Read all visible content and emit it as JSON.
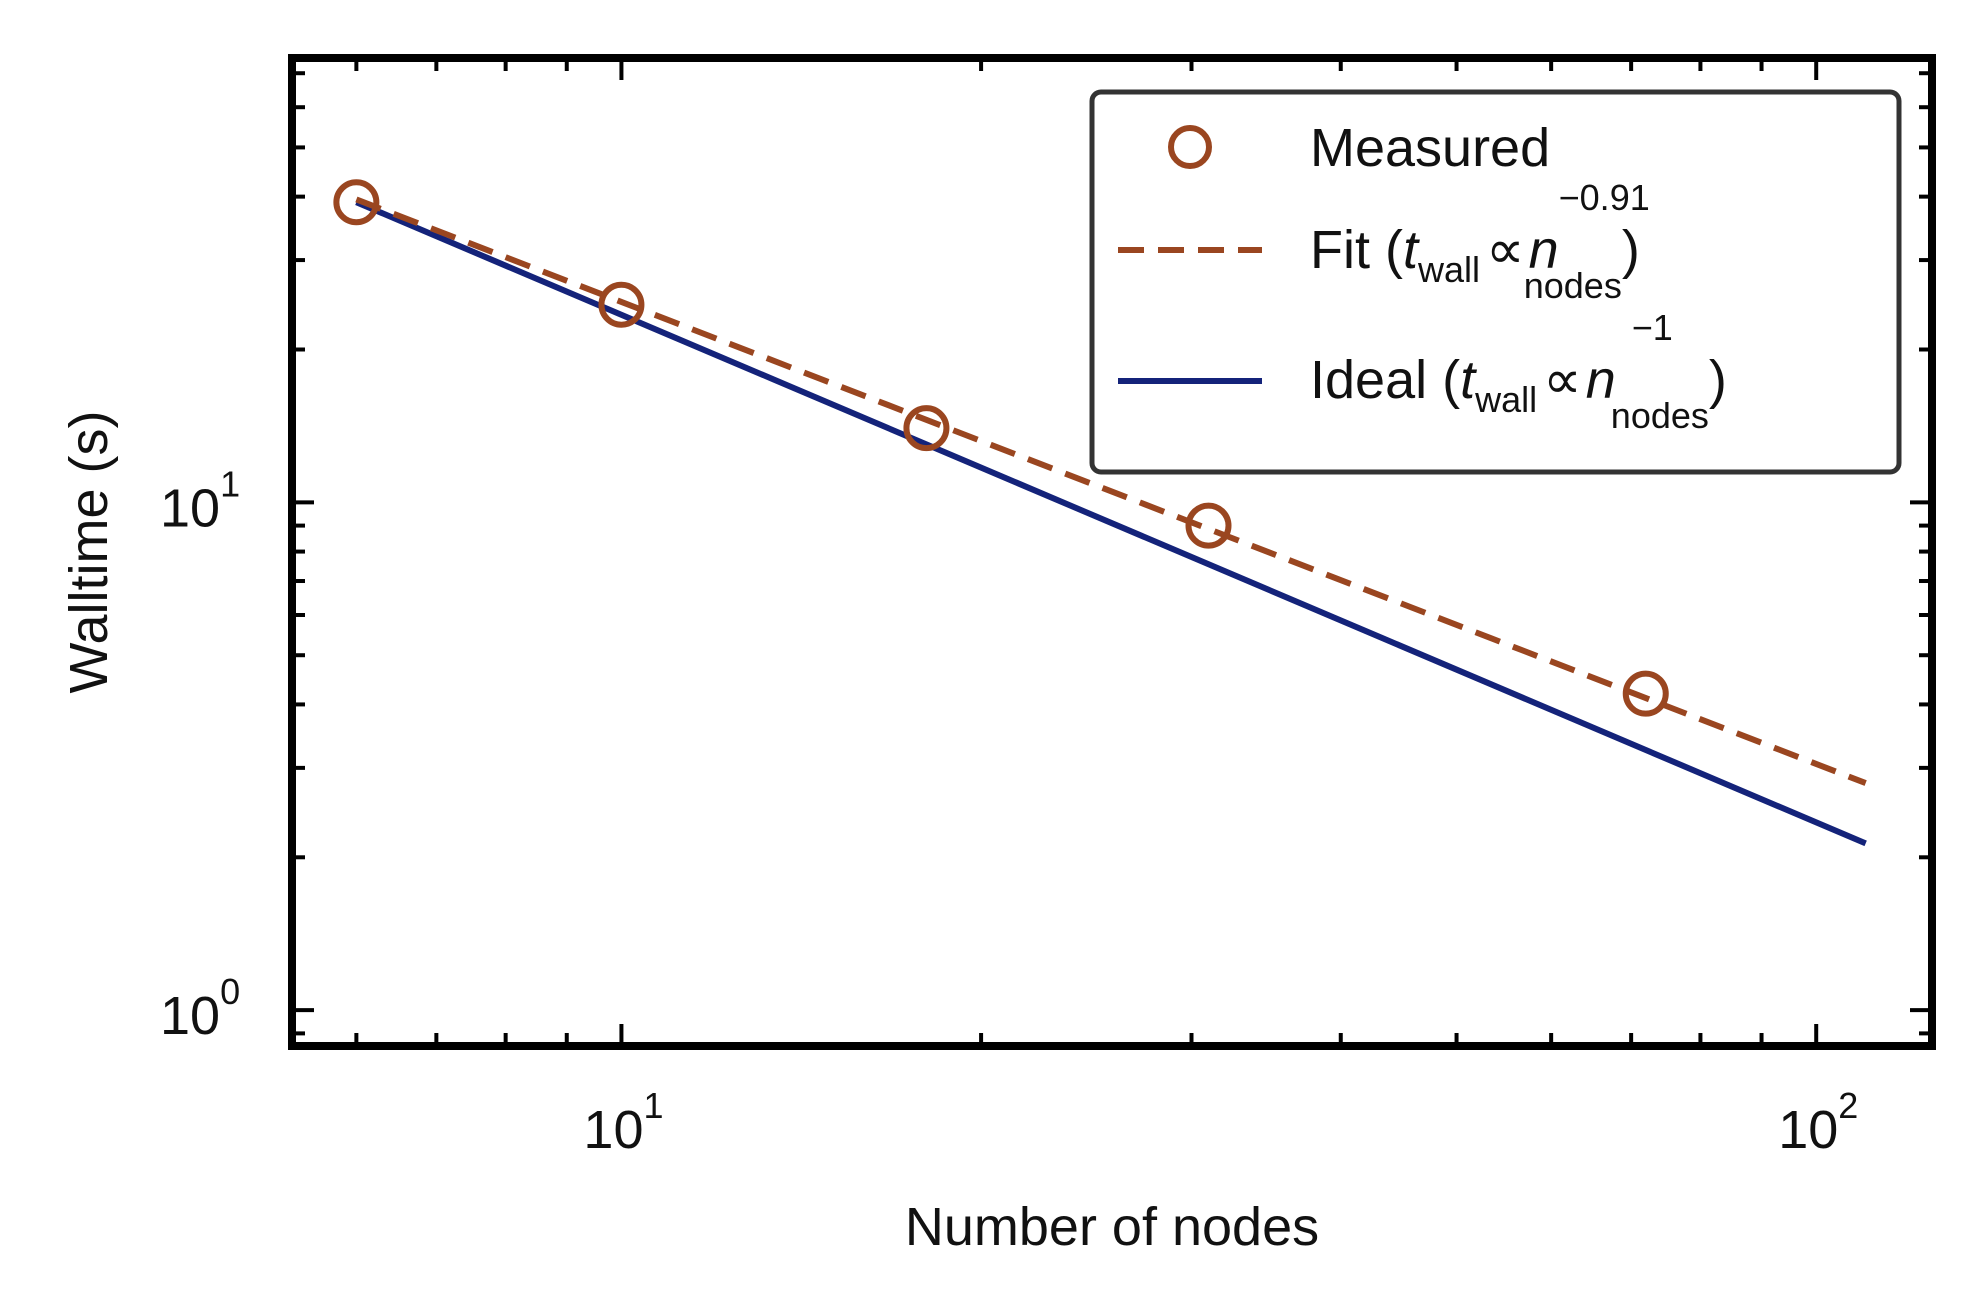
{
  "chart_data": {
    "type": "line",
    "x_scale": "log",
    "y_scale": "log",
    "xlabel": "Number of nodes",
    "ylabel": "Walltime (s)",
    "xlim": [
      5.3,
      125
    ],
    "ylim": [
      0.85,
      75
    ],
    "x_ticks": [
      {
        "value": 10,
        "base": "10",
        "exp": "1"
      },
      {
        "value": 100,
        "base": "10",
        "exp": "2"
      }
    ],
    "y_ticks": [
      {
        "value": 1,
        "base": "10",
        "exp": "0"
      },
      {
        "value": 10,
        "base": "10",
        "exp": "1"
      }
    ],
    "grid": false,
    "legend_position": "top-right",
    "series": [
      {
        "name": "Measured",
        "kind": "markers",
        "color": "#9a4620",
        "x": [
          6,
          10,
          18,
          31,
          72
        ],
        "y": [
          39,
          24.5,
          14,
          9,
          4.2
        ]
      },
      {
        "name": "Fit",
        "kind": "dashed-line",
        "color": "#9a4620",
        "exponent": "−0.91",
        "x": [
          6,
          110
        ],
        "y": [
          39.5,
          2.8
        ]
      },
      {
        "name": "Ideal",
        "kind": "solid-line",
        "color": "#14237a",
        "exponent": "−1",
        "x": [
          6,
          110
        ],
        "y": [
          39,
          2.13
        ]
      }
    ],
    "legend_labels": {
      "fit_prefix": "Fit (",
      "ideal_prefix": "Ideal (",
      "t": "t",
      "wall": "wall",
      "propto": "∝",
      "n": "n",
      "nodes": "nodes",
      "close": ")"
    }
  }
}
